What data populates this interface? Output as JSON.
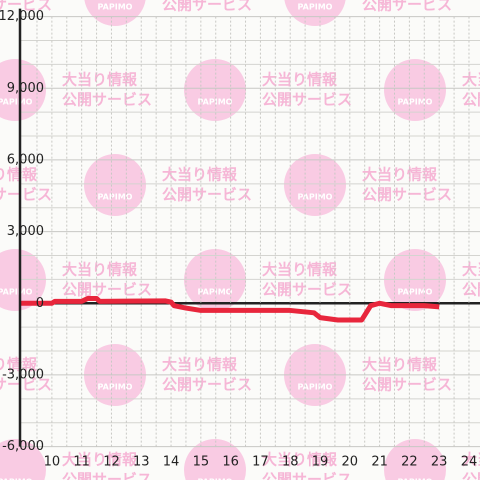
{
  "chart_data": {
    "type": "line",
    "color": "#e8263c",
    "x": [
      8.93,
      10.0,
      10.1,
      11.0,
      11.2,
      11.5,
      11.6,
      13.8,
      14.0,
      14.1,
      14.5,
      15.0,
      18.0,
      18.8,
      19.0,
      19.6,
      20.4,
      20.7,
      21.0,
      21.4,
      22.5,
      23.0
    ],
    "series": [
      {
        "color": "#e8263c",
        "values": [
          0,
          0,
          80,
          80,
          200,
          200,
          80,
          100,
          50,
          -100,
          -200,
          -300,
          -300,
          -400,
          -600,
          -700,
          -700,
          -100,
          0,
          -100,
          -100,
          -150
        ]
      }
    ],
    "xlim": [
      8.93,
      24.37
    ],
    "ylim": [
      -6000,
      12000
    ],
    "xticks": [
      10,
      11,
      12,
      13,
      14,
      15,
      16,
      17,
      18,
      19,
      20,
      21,
      22,
      23,
      24
    ],
    "yticks": [
      {
        "value": 12000,
        "label": "12,000"
      },
      {
        "value": 9000,
        "label": "9,000"
      },
      {
        "value": 6000,
        "label": "6,000"
      },
      {
        "value": 3000,
        "label": "3,000"
      },
      0,
      {
        "value": -3000,
        "label": "-3,000"
      },
      {
        "value": -6000,
        "label": "-6,000"
      }
    ],
    "grid": true
  },
  "watermark": {
    "line1": "大当り情報",
    "line2": "公開サービス",
    "logo": "PAPIMO"
  }
}
